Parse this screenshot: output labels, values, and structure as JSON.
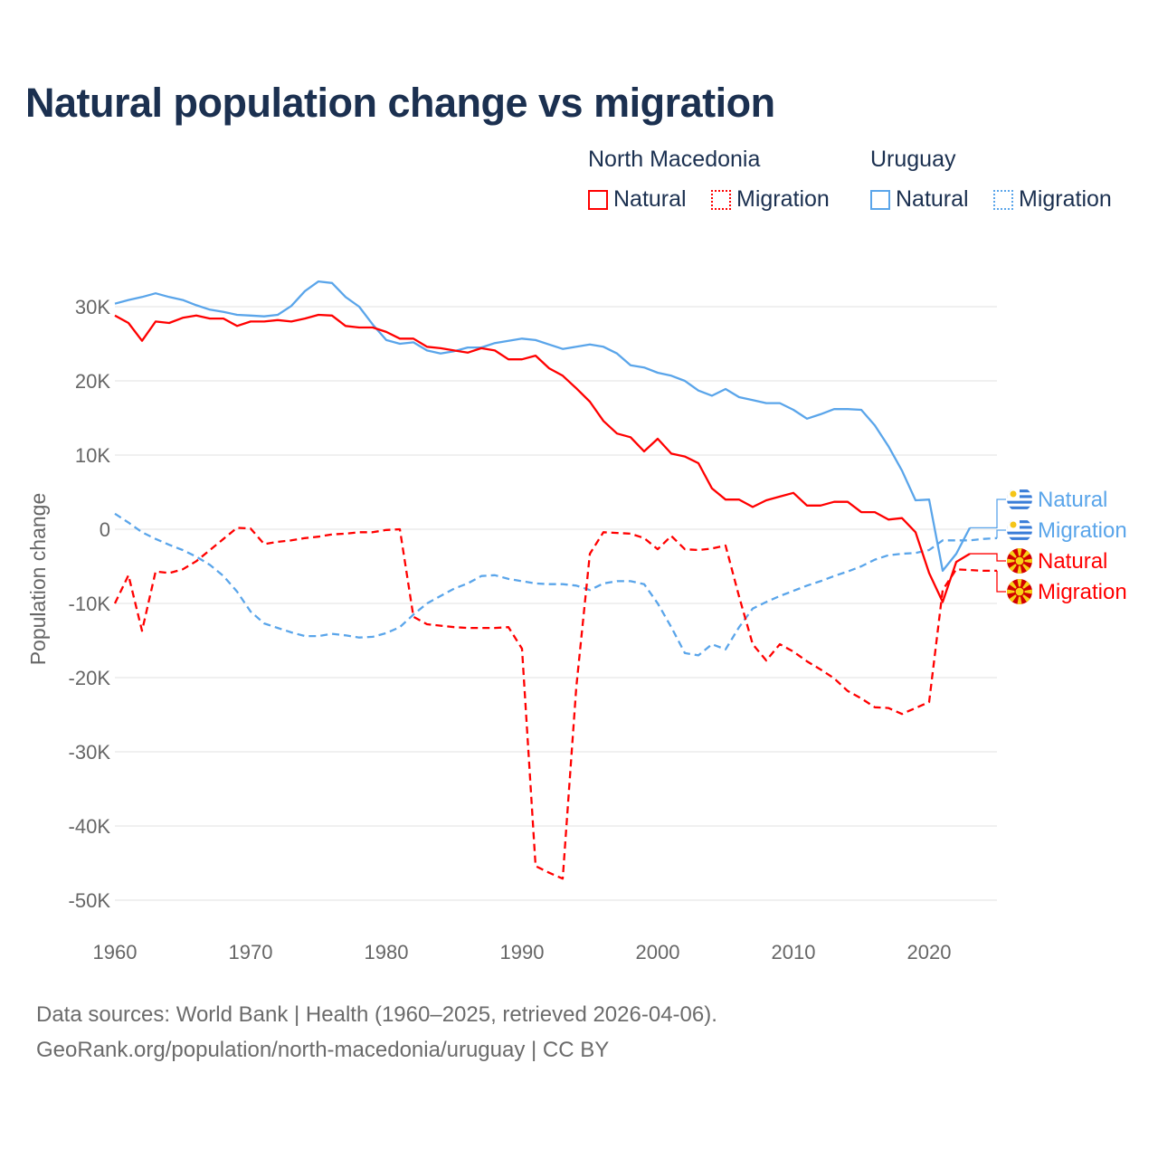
{
  "title": "Natural population change vs migration",
  "legend": {
    "groups": [
      {
        "name": "North Macedonia",
        "items": [
          {
            "label": "Natural",
            "style": "solid"
          },
          {
            "label": "Migration",
            "style": "dotted"
          }
        ],
        "color": "#ff0000"
      },
      {
        "name": "Uruguay",
        "items": [
          {
            "label": "Natural",
            "style": "solid"
          },
          {
            "label": "Migration",
            "style": "dotted"
          }
        ],
        "color": "#5aa5ea"
      }
    ]
  },
  "footer": {
    "line1": "Data sources: World Bank | Health (1960–2025, retrieved 2026-04-06).",
    "line2": "GeoRank.org/population/north-macedonia/uruguay | CC BY"
  },
  "chart_data": {
    "type": "line",
    "title": "Natural population change vs migration",
    "xlabel": "",
    "ylabel": "Population change",
    "xlim": [
      1960,
      2025
    ],
    "ylim": [
      -50000,
      30000
    ],
    "grid": true,
    "x_ticks": [
      1960,
      1970,
      1980,
      1990,
      2000,
      2010,
      2020
    ],
    "y_ticks": [
      {
        "v": 30000,
        "label": "30K"
      },
      {
        "v": 20000,
        "label": "20K"
      },
      {
        "v": 10000,
        "label": "10K"
      },
      {
        "v": 0,
        "label": "0"
      },
      {
        "v": -10000,
        "label": "-10K"
      },
      {
        "v": -20000,
        "label": "-20K"
      },
      {
        "v": -30000,
        "label": "-30K"
      },
      {
        "v": -40000,
        "label": "-40K"
      },
      {
        "v": -50000,
        "label": "-50K"
      }
    ],
    "legend_placement": "top-right, plus end-of-line labels",
    "series": [
      {
        "name": "Uruguay Natural",
        "end_label": "Natural",
        "country": "Uruguay",
        "color": "#5aa5ea",
        "dash": false,
        "start": 1960,
        "values": [
          30.4,
          30.9,
          31.3,
          31.8,
          31.3,
          30.9,
          30.2,
          29.6,
          29.3,
          28.9,
          28.8,
          28.7,
          28.9,
          30.1,
          32.1,
          33.4,
          33.2,
          31.3,
          30.0,
          27.6,
          25.5,
          25.0,
          25.2,
          24.1,
          23.7,
          24.0,
          24.5,
          24.5,
          25.1,
          25.4,
          25.7,
          25.5,
          24.9,
          24.3,
          24.6,
          24.9,
          24.6,
          23.7,
          22.1,
          21.8,
          21.1,
          20.7,
          20.0,
          18.7,
          18.0,
          18.9,
          17.8,
          17.4,
          17.0,
          17.0,
          16.1,
          14.9,
          15.5,
          16.2,
          16.2,
          16.1,
          14.0,
          11.2,
          7.9,
          3.9,
          4.0,
          -5.6,
          -3.3,
          0.2
        ]
      },
      {
        "name": "Uruguay Migration",
        "end_label": "Migration",
        "country": "Uruguay",
        "color": "#5aa5ea",
        "dash": true,
        "start": 1960,
        "values": [
          2.1,
          0.9,
          -0.4,
          -1.3,
          -2.1,
          -2.8,
          -3.7,
          -4.8,
          -6.3,
          -8.4,
          -11.1,
          -12.7,
          -13.3,
          -13.9,
          -14.4,
          -14.4,
          -14.1,
          -14.3,
          -14.6,
          -14.5,
          -14.0,
          -13.2,
          -11.5,
          -10.0,
          -9.0,
          -8.0,
          -7.3,
          -6.3,
          -6.2,
          -6.7,
          -7.0,
          -7.3,
          -7.4,
          -7.4,
          -7.6,
          -8.2,
          -7.3,
          -7.0,
          -7.0,
          -7.4,
          -10.0,
          -13.2,
          -16.7,
          -17.0,
          -15.5,
          -16.2,
          -13.2,
          -10.7,
          -9.8,
          -9.0,
          -8.3,
          -7.6,
          -7.0,
          -6.3,
          -5.7,
          -5.0,
          -4.1,
          -3.5,
          -3.3,
          -3.2,
          -2.8,
          -1.5,
          -1.5,
          -1.5,
          -1.3,
          -1.2
        ]
      },
      {
        "name": "North Macedonia Natural",
        "end_label": "Natural",
        "country": "North Macedonia",
        "color": "#ff0000",
        "dash": false,
        "start": 1960,
        "values": [
          28.8,
          27.8,
          25.4,
          28.0,
          27.8,
          28.5,
          28.8,
          28.4,
          28.4,
          27.4,
          28.0,
          28.0,
          28.2,
          28.0,
          28.4,
          28.9,
          28.8,
          27.4,
          27.2,
          27.2,
          26.6,
          25.7,
          25.7,
          24.6,
          24.4,
          24.1,
          23.8,
          24.4,
          24.1,
          22.9,
          22.9,
          23.4,
          21.7,
          20.7,
          19.0,
          17.2,
          14.6,
          12.9,
          12.4,
          10.5,
          12.2,
          10.2,
          9.8,
          8.9,
          5.5,
          4.0,
          4.0,
          3.0,
          3.9,
          4.4,
          4.9,
          3.2,
          3.2,
          3.7,
          3.7,
          2.3,
          2.3,
          1.3,
          1.5,
          -0.4,
          -5.9,
          -9.8,
          -4.4,
          -3.3
        ]
      },
      {
        "name": "North Macedonia Migration",
        "end_label": "Migration",
        "country": "North Macedonia",
        "color": "#ff0000",
        "dash": true,
        "start": 1960,
        "values": [
          -10.0,
          -6.2,
          -13.7,
          -5.7,
          -5.9,
          -5.4,
          -4.3,
          -2.8,
          -1.3,
          0.2,
          0.1,
          -2.0,
          -1.7,
          -1.5,
          -1.2,
          -1.0,
          -0.7,
          -0.6,
          -0.4,
          -0.4,
          -0.1,
          0.0,
          -11.8,
          -12.8,
          -13.0,
          -13.2,
          -13.3,
          -13.3,
          -13.3,
          -13.2,
          -16.1,
          -45.4,
          -46.3,
          -47.1,
          -21.3,
          -3.3,
          -0.4,
          -0.5,
          -0.6,
          -1.2,
          -2.7,
          -0.9,
          -2.7,
          -2.8,
          -2.6,
          -2.2,
          -9.1,
          -15.5,
          -17.7,
          -15.5,
          -16.5,
          -17.8,
          -18.9,
          -20.1,
          -21.8,
          -22.8,
          -24.0,
          -24.1,
          -24.9,
          -24.1,
          -23.3,
          -8.2,
          -5.4,
          -5.5,
          -5.6,
          -5.6
        ]
      }
    ],
    "value_unit": "thousands"
  }
}
